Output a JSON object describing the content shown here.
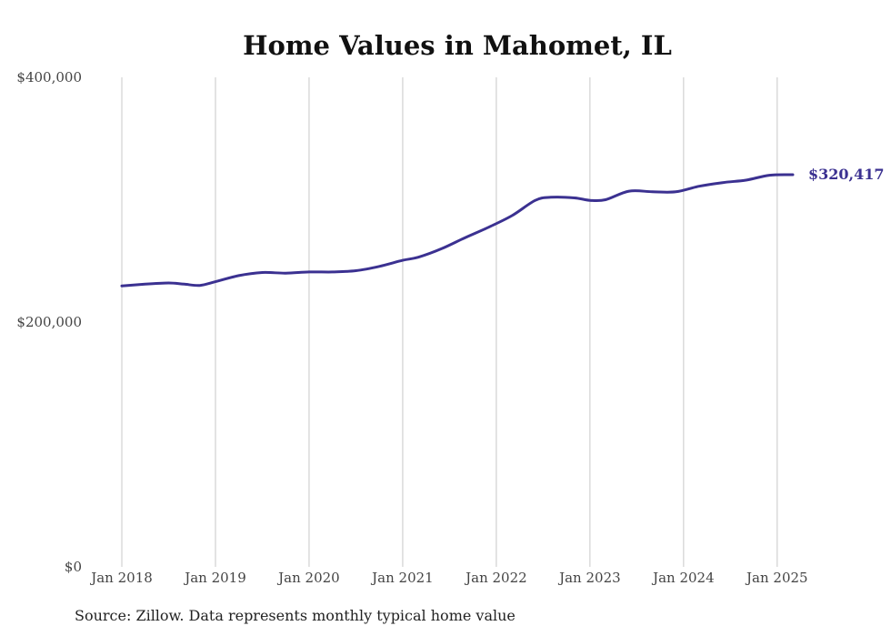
{
  "chart_data": {
    "type": "line",
    "title": "Home Values in Mahomet, IL",
    "xlabel": "",
    "ylabel": "",
    "ylim": [
      0,
      400000
    ],
    "y_ticks": [
      {
        "value": 0,
        "label": "$0"
      },
      {
        "value": 200000,
        "label": "$200,000"
      },
      {
        "value": 400000,
        "label": "$400,000"
      }
    ],
    "x_ticks": [
      {
        "year": 2018,
        "label": "Jan 2018"
      },
      {
        "year": 2019,
        "label": "Jan 2019"
      },
      {
        "year": 2020,
        "label": "Jan 2020"
      },
      {
        "year": 2021,
        "label": "Jan 2021"
      },
      {
        "year": 2022,
        "label": "Jan 2022"
      },
      {
        "year": 2023,
        "label": "Jan 2023"
      },
      {
        "year": 2024,
        "label": "Jan 2024"
      },
      {
        "year": 2025,
        "label": "Jan 2025"
      }
    ],
    "x_range": [
      "2018-01",
      "2025-03"
    ],
    "grid": {
      "vertical": true,
      "horizontal": false
    },
    "line_color": "#3b3191",
    "series": [
      {
        "x": [
          "2018-01",
          "2018-04",
          "2018-07",
          "2018-09",
          "2018-11",
          "2019-01",
          "2019-04",
          "2019-07",
          "2019-10",
          "2020-01",
          "2020-04",
          "2020-07",
          "2020-10",
          "2021-01",
          "2021-03",
          "2021-06",
          "2021-09",
          "2021-12",
          "2022-03",
          "2022-06",
          "2022-08",
          "2022-11",
          "2023-01",
          "2023-03",
          "2023-06",
          "2023-09",
          "2023-12",
          "2024-03",
          "2024-06",
          "2024-09",
          "2024-12",
          "2025-03"
        ],
        "y": [
          229500,
          231000,
          232000,
          231000,
          230000,
          233000,
          238000,
          240500,
          240000,
          241000,
          241000,
          242000,
          245500,
          250500,
          253000,
          260000,
          269000,
          277500,
          287000,
          299500,
          302000,
          301500,
          299500,
          300000,
          307000,
          306500,
          306500,
          311000,
          314000,
          316000,
          320000,
          320417
        ]
      }
    ],
    "end_label": "$320,417"
  },
  "source": "Source: Zillow. Data represents monthly typical home value"
}
